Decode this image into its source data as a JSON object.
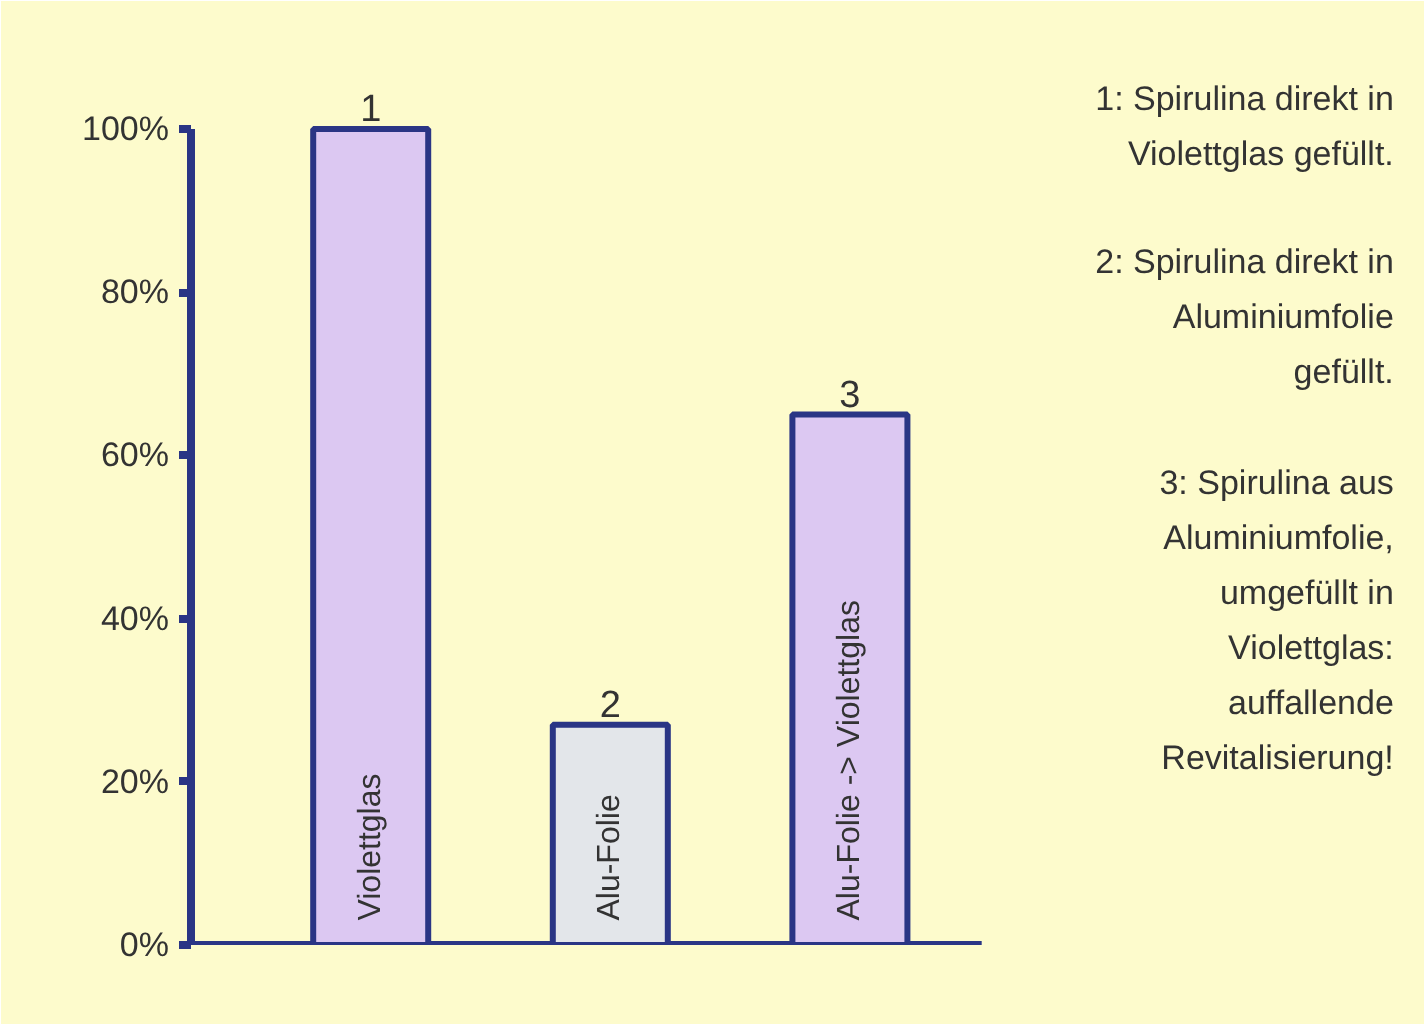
{
  "chart_data": {
    "type": "bar",
    "categories": [
      "Violettglas",
      "Alu-Folie",
      "Alu-Folie -> Violettglas"
    ],
    "values": [
      100,
      27,
      65
    ],
    "colors": [
      "#dcc8f2",
      "#e3e6ea",
      "#dcc8f2"
    ],
    "ylim": [
      0,
      100
    ],
    "yticks": [
      {
        "value": 0,
        "label": "0%"
      },
      {
        "value": 20,
        "label": "20%"
      },
      {
        "value": 40,
        "label": "40%"
      },
      {
        "value": 60,
        "label": "60%"
      },
      {
        "value": 80,
        "label": "80%"
      },
      {
        "value": 100,
        "label": "100%"
      }
    ],
    "grid": false,
    "annotations": [
      {
        "text": "1",
        "x": "Violettglas",
        "y": 100
      },
      {
        "text": "2",
        "x": "Alu-Folie",
        "y": 27
      },
      {
        "text": "3",
        "x": "Alu-Folie -> Violettglas",
        "y": 65
      },
      "1: Spirulina direkt in Violettglas gefüllt.",
      "2: Spirulina direkt in Aluminiumfolie gefüllt.",
      "3: Spirulina aus Aluminiumfolie, umgefüllt in Violettglas: auffallende Revitalisierung!"
    ]
  }
}
